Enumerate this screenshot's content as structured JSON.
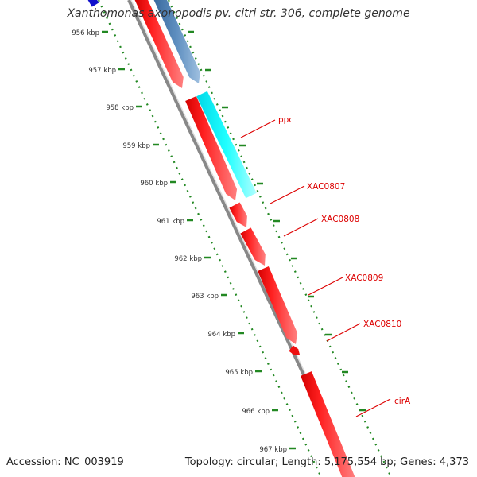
{
  "title": "Xanthomonas axonopodis pv. citri str. 306, complete genome",
  "footer": {
    "accession": "Accession: NC_003919",
    "topology": "Topology: circular; Length: 5,175,554 bp; Genes: 4,373"
  },
  "colors": {
    "forward_cds": "#ff0000",
    "gene_blue": "#4d7fb3",
    "gene_cyan": "#00ffff",
    "backbone": "#888888",
    "ticks": "#228822",
    "labels": "#dd0000"
  },
  "scale_ticks": [
    "956 kbp",
    "957 kbp",
    "958 kbp",
    "959 kbp",
    "960 kbp",
    "961 kbp",
    "962 kbp",
    "963 kbp",
    "964 kbp",
    "965 kbp",
    "966 kbp",
    "967 kbp"
  ],
  "gene_labels": [
    "ppc",
    "XAC0807",
    "XAC0808",
    "XAC0809",
    "XAC0810",
    "cirA"
  ]
}
